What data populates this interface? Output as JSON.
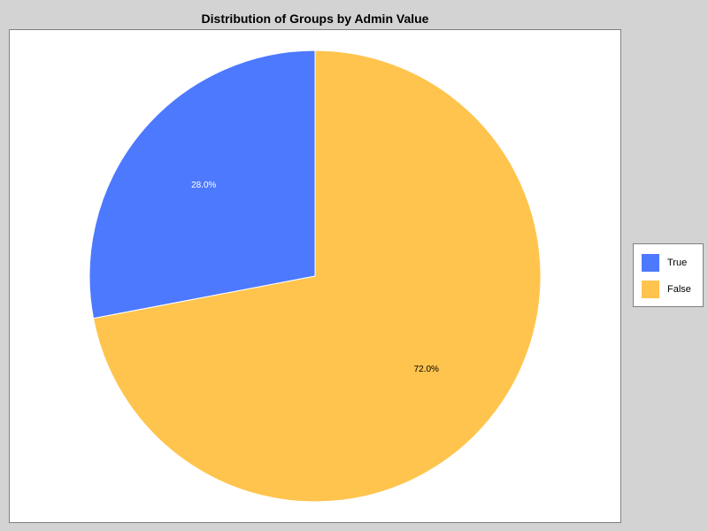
{
  "chart_data": {
    "type": "pie",
    "title": "Distribution of Groups by Admin Value",
    "slices": [
      {
        "name": "True",
        "value": 28.0,
        "label": "28.0%",
        "color": "#4d79ff",
        "label_color": "#ffffff"
      },
      {
        "name": "False",
        "value": 72.0,
        "label": "72.0%",
        "color": "#ffc44d",
        "label_color": "#000000"
      }
    ],
    "legend_position": "right"
  },
  "colors": {
    "background": "#d3d3d3",
    "plot_background": "#ffffff",
    "border": "#808080"
  }
}
